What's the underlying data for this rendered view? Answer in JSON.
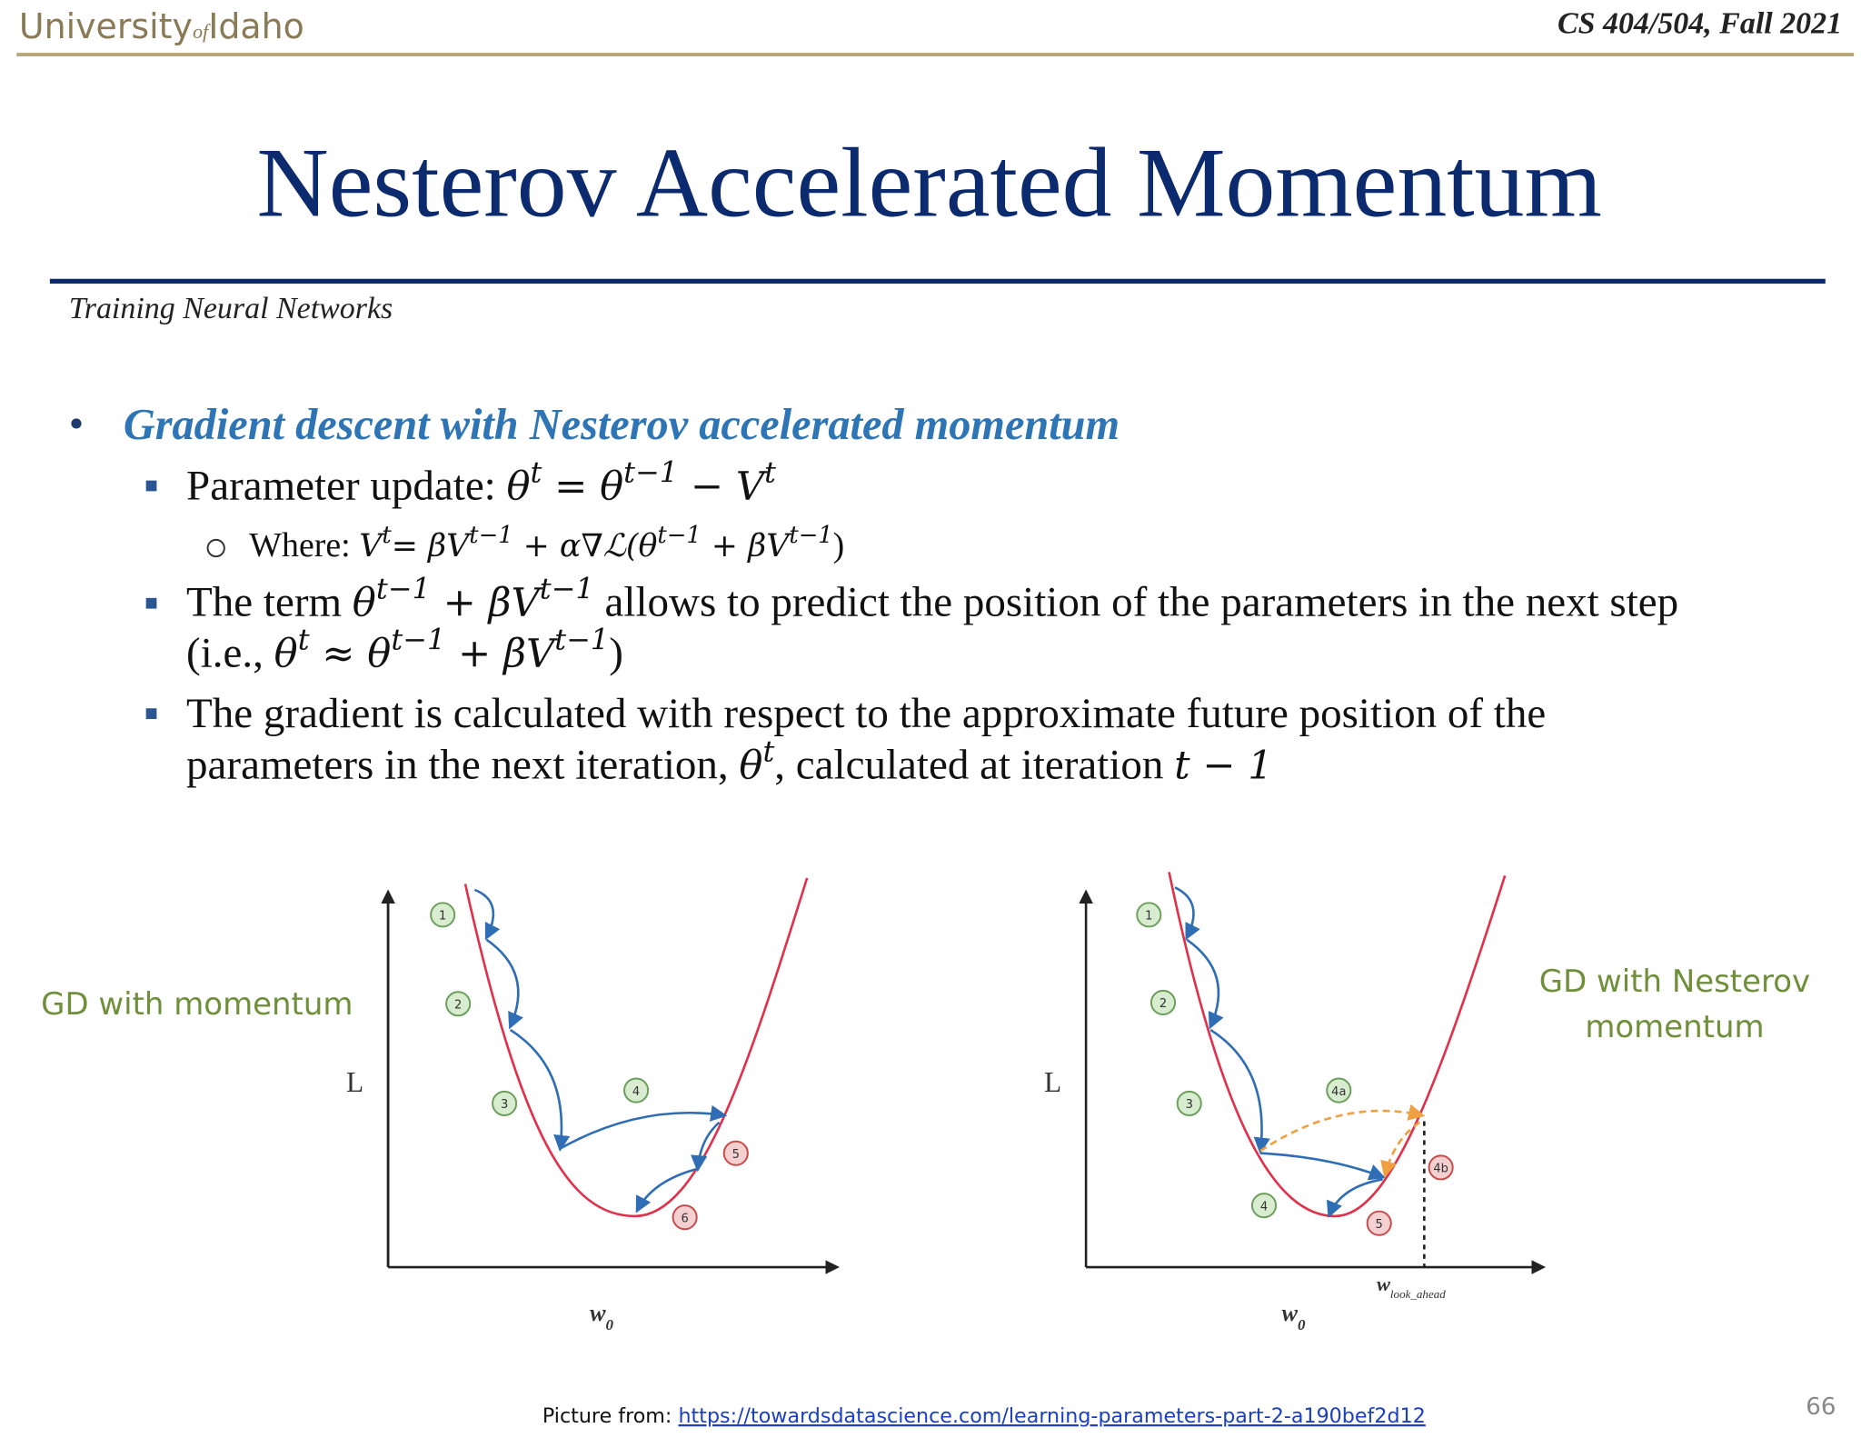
{
  "header": {
    "logo": {
      "word1": "University",
      "word2": "of",
      "word3": "Idaho"
    },
    "course": "CS 404/504, Fall 2021"
  },
  "title": "Nesterov Accelerated Momentum",
  "subtitle": "Training Neural Networks",
  "bullet": {
    "heading": "Gradient descent with Nesterov accelerated momentum",
    "lines": [
      [
        "Parameter update: ",
        [
          "θ",
          "t"
        ],
        [
          " = θ",
          "t−1"
        ],
        [
          " − V",
          "t"
        ]
      ],
      [
        "Where: ",
        [
          "V",
          "t"
        ],
        [
          "= βV",
          "t−1"
        ],
        [
          " + α∇ℒ(θ",
          "t−1"
        ],
        [
          " + βV",
          "t−1"
        ],
        ")"
      ],
      [
        "The term ",
        [
          "θ",
          "t−1"
        ],
        [
          " + βV",
          "t−1"
        ],
        " allows to predict the position of the parameters in the next step"
      ],
      [
        "(i.e., ",
        [
          "θ",
          "t"
        ],
        [
          " ≈ θ",
          "t−1"
        ],
        [
          " + βV",
          "t−1"
        ],
        ")"
      ],
      [
        "The gradient is calculated with respect to the approximate future position of the"
      ],
      [
        "parameters in the next iteration, ",
        [
          "θ",
          "t"
        ],
        ", calculated at iteration ",
        [
          "t − 1"
        ]
      ]
    ]
  },
  "figure": {
    "left": {
      "caption": [
        "GD with momentum"
      ],
      "y_label": "L",
      "x_label": "w",
      "x_label_sub": "0",
      "steps": [
        "1",
        "2",
        "3",
        "4",
        "5",
        "6"
      ]
    },
    "right": {
      "caption": [
        "GD with Nesterov",
        "momentum"
      ],
      "y_label": "L",
      "x_label": "w",
      "x_label_sub": "0",
      "lookahead": "w",
      "lookahead_sub": "look_ahead",
      "steps": [
        "1",
        "2",
        "3",
        "4a",
        "4b",
        "4",
        "5"
      ]
    }
  },
  "footer": {
    "source_prefix": "Picture from: ",
    "source_url": "https://towardsdatascience.com/learning-parameters-part-2-a190bef2d12",
    "page": "66"
  }
}
